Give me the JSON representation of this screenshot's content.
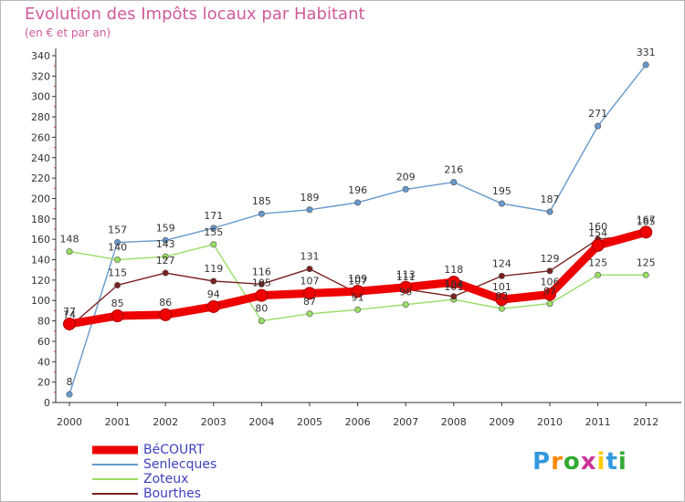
{
  "title": "Evolution des Impôts locaux par Habitant",
  "subtitle": "(en € et par an)",
  "logo_text": "Proxiti",
  "colors": {
    "title": "#d05a9a",
    "axis": "#333333",
    "legend_text": "#4040c0"
  },
  "chart_data": {
    "type": "line",
    "x": [
      2000,
      2001,
      2002,
      2003,
      2004,
      2005,
      2006,
      2007,
      2008,
      2009,
      2010,
      2011,
      2012
    ],
    "ylim": [
      0,
      340
    ],
    "yticks": [
      0,
      20,
      40,
      60,
      80,
      100,
      120,
      140,
      160,
      180,
      200,
      220,
      240,
      260,
      280,
      300,
      320,
      340
    ],
    "grid": false,
    "legend_position": "bottom-left",
    "series": [
      {
        "name": "BéCOURT",
        "color": "#ee0000",
        "values": [
          77,
          85,
          86,
          94,
          105,
          107,
          109,
          113,
          118,
          101,
          106,
          154,
          167
        ]
      },
      {
        "name": "Senlecques",
        "color": "#6699cc",
        "values": [
          8,
          157,
          159,
          171,
          185,
          189,
          196,
          209,
          216,
          195,
          187,
          271,
          331
        ]
      },
      {
        "name": "Zoteux",
        "color": "#99dd66",
        "values": [
          148,
          140,
          143,
          155,
          80,
          87,
          91,
          96,
          101,
          92,
          97,
          125,
          125
        ]
      },
      {
        "name": "Bourthes",
        "color": "#7a2020",
        "values": [
          74,
          115,
          127,
          119,
          116,
          131,
          107,
          111,
          104,
          124,
          129,
          160,
          165
        ]
      }
    ]
  }
}
